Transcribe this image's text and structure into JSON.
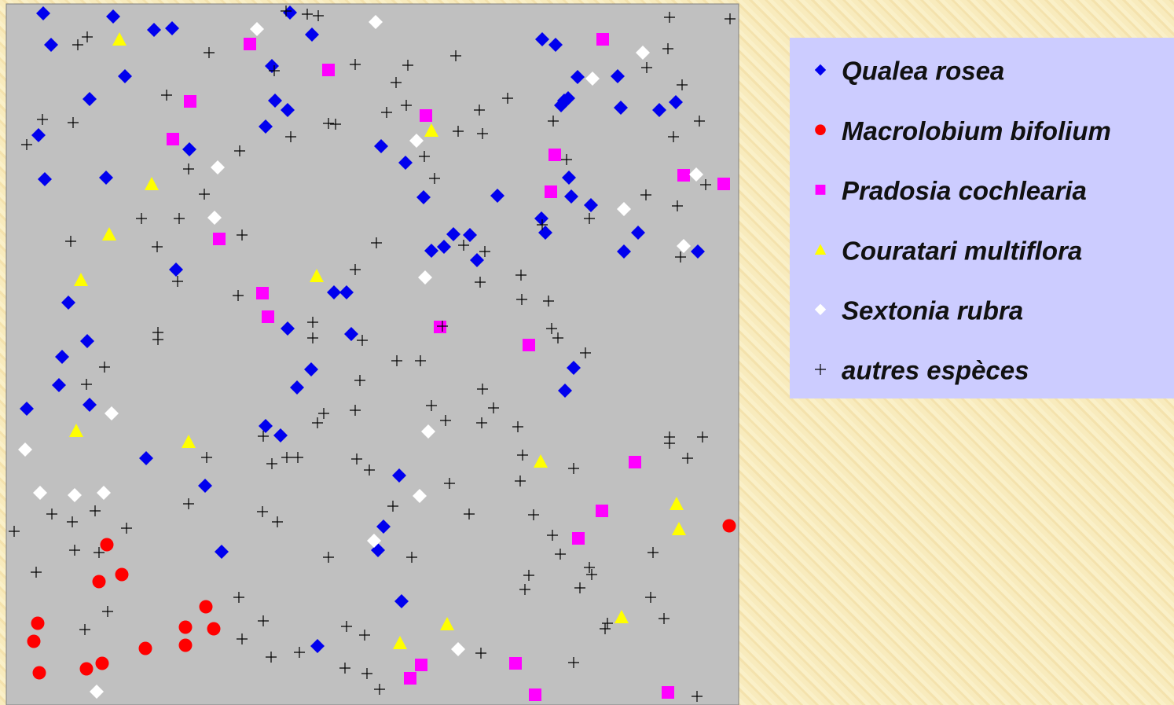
{
  "chart_data": {
    "type": "scatter",
    "xlim": [
      8,
      940
    ],
    "ylim": [
      897,
      5
    ],
    "series": [
      {
        "name": "Qualea rosea",
        "color": "#0000ee",
        "marker": "diamond",
        "x": [
          55,
          144,
          65,
          196,
          219,
          369,
          397,
          159,
          114,
          346,
          350,
          366,
          338,
          49,
          241,
          57,
          135,
          690,
          707,
          735,
          786,
          723,
          714,
          718,
          790,
          839,
          860,
          485,
          516,
          724,
          539,
          633,
          727,
          752,
          689,
          694,
          812,
          577,
          598,
          565,
          549,
          607,
          794,
          888,
          224,
          87,
          425,
          441,
          366,
          447,
          111,
          79,
          75,
          114,
          34,
          396,
          378,
          730,
          719,
          338,
          357,
          186,
          261,
          508,
          488,
          481,
          282,
          511,
          404
        ],
        "y": [
          17,
          21,
          57,
          38,
          36,
          16,
          44,
          97,
          126,
          84,
          128,
          140,
          161,
          172,
          190,
          228,
          226,
          50,
          57,
          98,
          97,
          125,
          134,
          128,
          137,
          140,
          130,
          186,
          207,
          226,
          251,
          249,
          250,
          261,
          278,
          296,
          296,
          298,
          299,
          314,
          319,
          331,
          320,
          320,
          343,
          385,
          372,
          372,
          418,
          425,
          434,
          454,
          490,
          515,
          520,
          470,
          493,
          468,
          497,
          542,
          554,
          583,
          618,
          605,
          670,
          700,
          702,
          765,
          822
        ]
      },
      {
        "name": "Macrolobium bifolium",
        "color": "#ff0000",
        "marker": "circle",
        "x": [
          136,
          126,
          155,
          262,
          48,
          43,
          236,
          272,
          236,
          185,
          130,
          110,
          50,
          928
        ],
        "y": [
          693,
          740,
          731,
          772,
          793,
          816,
          798,
          800,
          821,
          825,
          844,
          851,
          856,
          669
        ]
      },
      {
        "name": "Pradosia cochlearia",
        "color": "#ff00ff",
        "marker": "square",
        "x": [
          318,
          767,
          418,
          242,
          542,
          220,
          706,
          870,
          921,
          701,
          279,
          334,
          341,
          560,
          673,
          808,
          766,
          736,
          656,
          536,
          522,
          681,
          850
        ],
        "y": [
          56,
          50,
          89,
          129,
          147,
          177,
          197,
          223,
          234,
          244,
          304,
          373,
          403,
          416,
          439,
          588,
          650,
          685,
          844,
          846,
          863,
          884,
          881
        ]
      },
      {
        "name": "Couratari multiflora",
        "color": "#ffff00",
        "marker": "triangle",
        "x": [
          152,
          549,
          193,
          139,
          103,
          403,
          97,
          240,
          688,
          861,
          864,
          791,
          569,
          509
        ],
        "y": [
          50,
          166,
          234,
          298,
          356,
          351,
          548,
          562,
          587,
          641,
          673,
          785,
          794,
          818
        ]
      },
      {
        "name": "Sextonia rubra",
        "color": "#ffffff",
        "marker": "diamond",
        "x": [
          327,
          478,
          818,
          754,
          530,
          277,
          886,
          273,
          794,
          870,
          541,
          142,
          545,
          32,
          51,
          95,
          132,
          534,
          476,
          583,
          123
        ],
        "y": [
          37,
          28,
          67,
          100,
          179,
          213,
          222,
          277,
          266,
          313,
          353,
          526,
          549,
          572,
          627,
          630,
          627,
          631,
          688,
          826,
          880
        ]
      },
      {
        "name": "autres espèces",
        "color": "#000000",
        "marker": "plus",
        "x": [
          364,
          391,
          405,
          852,
          929,
          111,
          99,
          266,
          349,
          452,
          519,
          580,
          850,
          823,
          504,
          868,
          212,
          492,
          517,
          610,
          646,
          54,
          93,
          418,
          427,
          370,
          583,
          614,
          704,
          890,
          857,
          34,
          305,
          540,
          240,
          721,
          553,
          260,
          898,
          822,
          862,
          180,
          228,
          690,
          750,
          90,
          200,
          308,
          479,
          590,
          617,
          866,
          226,
          452,
          611,
          663,
          303,
          664,
          698,
          201,
          201,
          398,
          398,
          461,
          563,
          702,
          710,
          133,
          505,
          535,
          745,
          110,
          458,
          614,
          412,
          404,
          452,
          549,
          567,
          628,
          613,
          659,
          335,
          852,
          852,
          894,
          263,
          346,
          365,
          379,
          454,
          470,
          665,
          730,
          875,
          572,
          662,
          240,
          66,
          92,
          121,
          161,
          18,
          334,
          353,
          500,
          597,
          679,
          95,
          126,
          703,
          713,
          46,
          418,
          524,
          831,
          673,
          668,
          750,
          753,
          738,
          304,
          828,
          137,
          108,
          335,
          845,
          441,
          464,
          308,
          773,
          770,
          345,
          381,
          612,
          730,
          439,
          467,
          483,
          887
        ],
        "y": [
          14,
          18,
          20,
          22,
          24,
          47,
          57,
          67,
          90,
          82,
          83,
          71,
          62,
          86,
          105,
          108,
          121,
          143,
          134,
          140,
          125,
          152,
          156,
          157,
          158,
          174,
          167,
          170,
          154,
          154,
          174,
          184,
          192,
          199,
          215,
          203,
          227,
          247,
          235,
          248,
          262,
          278,
          278,
          286,
          278,
          307,
          314,
          299,
          309,
          312,
          320,
          327,
          358,
          343,
          359,
          350,
          376,
          381,
          383,
          423,
          432,
          410,
          430,
          433,
          415,
          418,
          430,
          467,
          459,
          459,
          449,
          489,
          484,
          495,
          526,
          538,
          522,
          516,
          535,
          519,
          538,
          543,
          555,
          556,
          564,
          556,
          582,
          590,
          582,
          582,
          584,
          598,
          579,
          596,
          583,
          615,
          612,
          641,
          654,
          664,
          650,
          672,
          676,
          651,
          664,
          644,
          654,
          655,
          700,
          703,
          681,
          705,
          728,
          709,
          709,
          703,
          732,
          750,
          722,
          731,
          748,
          760,
          760,
          778,
          801,
          790,
          787,
          797,
          808,
          813,
          793,
          800,
          836,
          830,
          831,
          843,
          850,
          857,
          877,
          886
        ]
      }
    ]
  }
}
